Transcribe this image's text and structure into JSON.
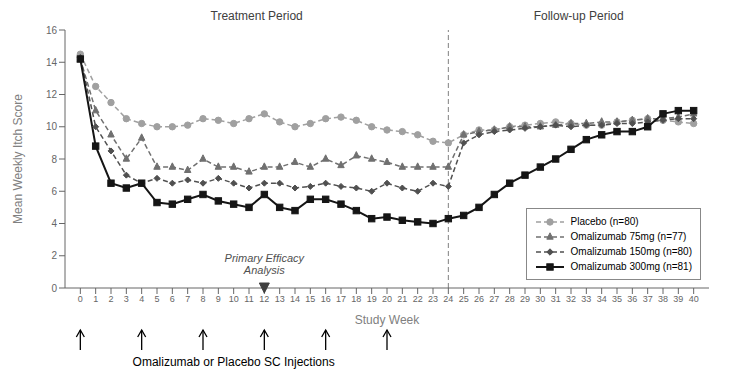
{
  "chart_data": {
    "type": "line",
    "xlabel": "Study Week",
    "ylabel": "Mean Weekly Itch Score",
    "x": [
      0,
      1,
      2,
      3,
      4,
      5,
      6,
      7,
      8,
      9,
      10,
      11,
      12,
      13,
      14,
      15,
      16,
      17,
      18,
      19,
      20,
      21,
      22,
      23,
      24,
      25,
      26,
      27,
      28,
      29,
      30,
      31,
      32,
      33,
      34,
      35,
      36,
      37,
      38,
      39,
      40
    ],
    "xlim": [
      -1,
      41
    ],
    "xticks": [
      0,
      1,
      2,
      3,
      4,
      5,
      6,
      7,
      8,
      9,
      10,
      11,
      12,
      13,
      14,
      15,
      16,
      17,
      18,
      19,
      20,
      21,
      22,
      23,
      24,
      25,
      26,
      27,
      28,
      29,
      30,
      31,
      32,
      33,
      34,
      35,
      36,
      37,
      38,
      39,
      40
    ],
    "ylim": [
      0,
      16
    ],
    "yticks": [
      0,
      2,
      4,
      6,
      8,
      10,
      12,
      14,
      16
    ],
    "grid": false,
    "legend": "lower right",
    "series": [
      {
        "name": "Placebo (n=80)",
        "color": "#a0a0a0",
        "marker": "circle",
        "line_style": "dashed",
        "values": [
          14.5,
          12.5,
          11.5,
          10.5,
          10.2,
          10.0,
          10.0,
          10.1,
          10.5,
          10.4,
          10.2,
          10.5,
          10.8,
          10.3,
          10.0,
          10.2,
          10.5,
          10.6,
          10.4,
          10.0,
          9.8,
          9.7,
          9.5,
          9.1,
          9.0,
          9.5,
          9.8,
          9.8,
          10.0,
          10.1,
          10.2,
          10.3,
          10.2,
          10.1,
          10.1,
          10.3,
          10.4,
          10.5,
          10.4,
          10.3,
          10.2
        ]
      },
      {
        "name": "Omalizumab 75mg (n=77)",
        "color": "#707070",
        "marker": "triangle",
        "line_style": "dashed",
        "values": [
          14.2,
          11.0,
          9.5,
          8.0,
          9.3,
          7.5,
          7.5,
          7.3,
          8.0,
          7.5,
          7.5,
          7.2,
          7.5,
          7.5,
          7.8,
          7.5,
          8.0,
          7.6,
          8.2,
          8.0,
          7.8,
          7.5,
          7.5,
          7.5,
          7.5,
          9.5,
          9.7,
          9.8,
          10.0,
          10.0,
          10.0,
          10.1,
          10.2,
          10.2,
          10.3,
          10.3,
          10.4,
          10.5,
          10.5,
          10.6,
          10.8
        ]
      },
      {
        "name": "Omalizumab 150mg (n=80)",
        "color": "#505050",
        "marker": "diamond",
        "line_style": "dashed",
        "values": [
          14.3,
          10.0,
          8.5,
          7.0,
          6.5,
          6.8,
          6.5,
          6.7,
          6.5,
          6.8,
          6.5,
          6.2,
          6.5,
          6.5,
          6.2,
          6.3,
          6.5,
          6.3,
          6.2,
          6.0,
          6.5,
          6.2,
          6.0,
          6.5,
          6.3,
          9.0,
          9.5,
          9.7,
          9.8,
          9.9,
          10.0,
          10.1,
          10.0,
          10.1,
          10.1,
          10.2,
          10.2,
          10.3,
          10.4,
          10.5,
          10.5
        ]
      },
      {
        "name": "Omalizumab 300mg (n=81)",
        "color": "#151515",
        "marker": "square",
        "line_style": "solid",
        "values": [
          14.2,
          8.8,
          6.5,
          6.2,
          6.5,
          5.3,
          5.2,
          5.5,
          5.8,
          5.4,
          5.2,
          5.0,
          5.8,
          5.0,
          4.8,
          5.5,
          5.5,
          5.2,
          4.8,
          4.3,
          4.4,
          4.2,
          4.1,
          4.0,
          4.3,
          4.5,
          5.0,
          5.8,
          6.5,
          7.0,
          7.5,
          8.0,
          8.6,
          9.2,
          9.5,
          9.7,
          9.7,
          10.0,
          10.8,
          11.0,
          11.0
        ]
      }
    ],
    "reference_lines": [
      {
        "x": 24,
        "color": "#808080",
        "line_style": "dashed"
      }
    ],
    "annotations": [
      {
        "text": "Treatment Period"
      },
      {
        "text": "Follow-up Period"
      },
      {
        "text": "Primary Efficacy\nAnalysis",
        "x": 12,
        "marker": "triangle_down"
      },
      {
        "text": "Omalizumab or Placebo SC Injections",
        "arrows_x": [
          0,
          4,
          8,
          12,
          16,
          20
        ]
      }
    ]
  }
}
